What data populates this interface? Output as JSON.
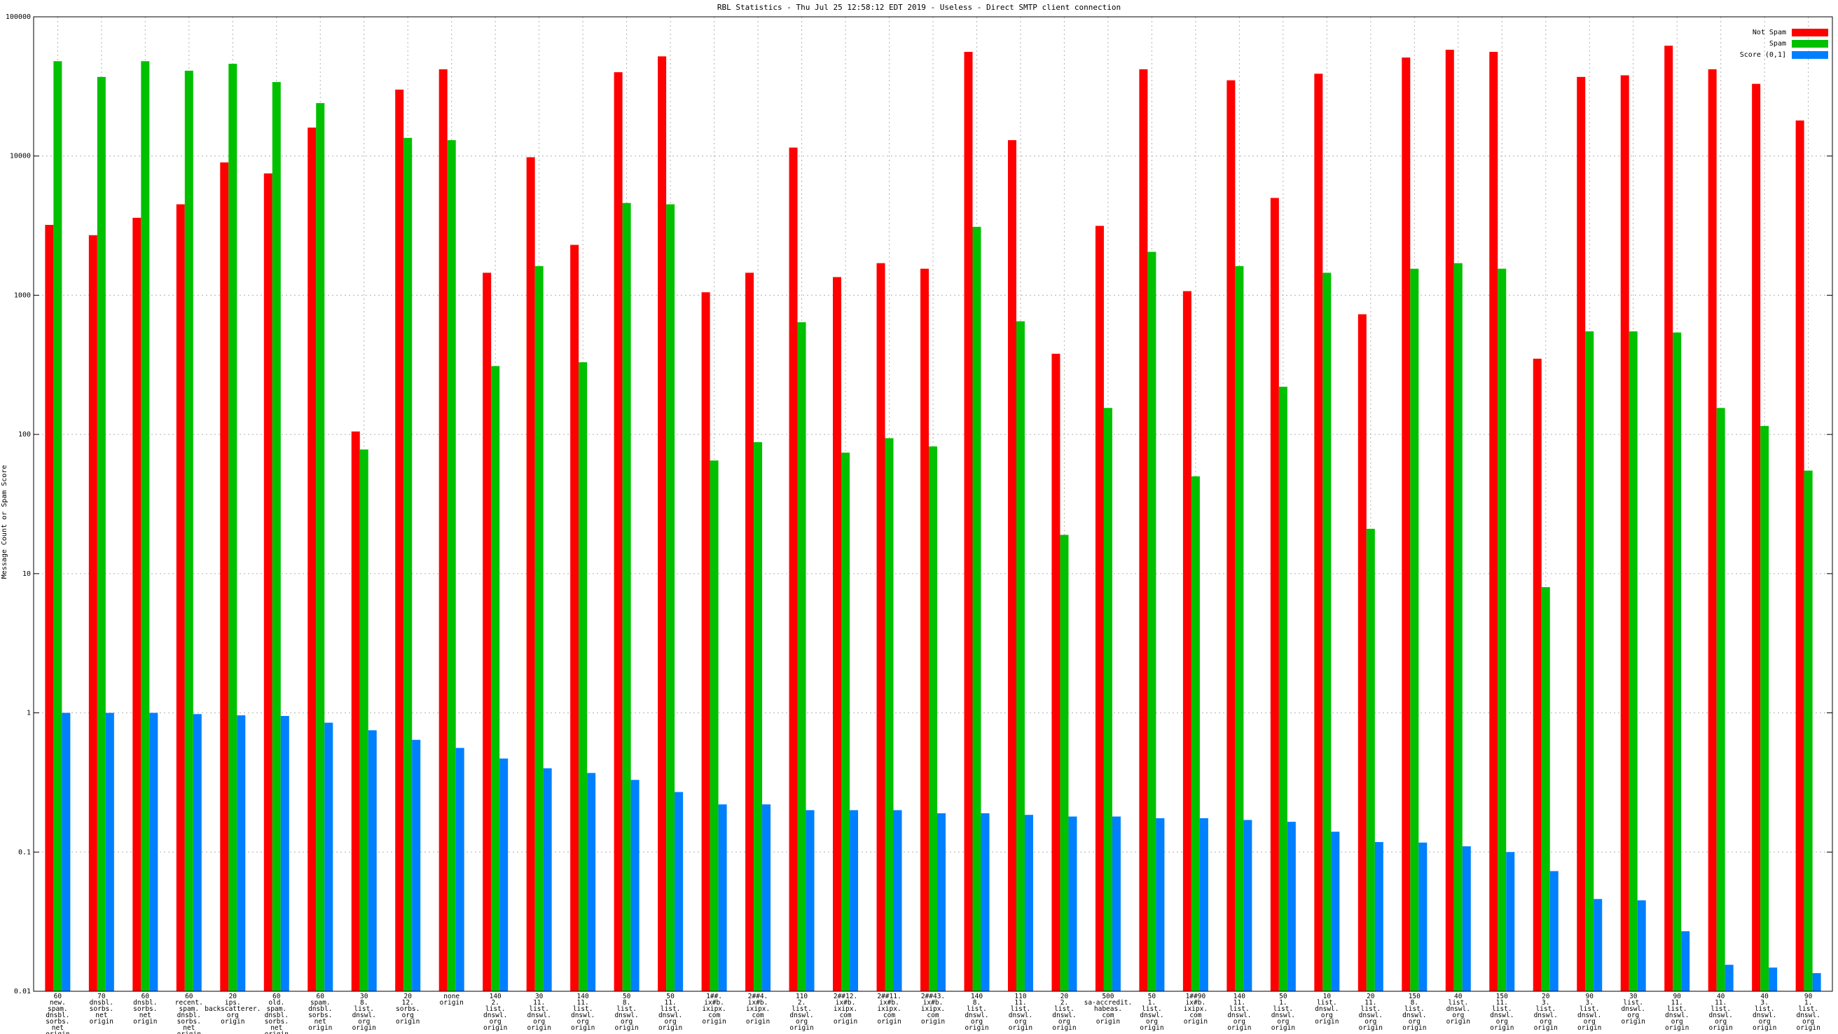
{
  "chart_data": {
    "type": "bar",
    "title": "RBL Statistics - Thu Jul 25 12:58:12 EDT 2019 - Useless - Direct SMTP client connection",
    "ylabel": "Message Count or Spam Score",
    "yscale": "log",
    "ylim": [
      0.01,
      100000
    ],
    "yticks": [
      "0.01",
      "0.1",
      "1",
      "10",
      "100",
      "1000",
      "10000",
      "100000"
    ],
    "grid": true,
    "legend_position": "top-right",
    "colors": [
      "#ff0000",
      "#00c000",
      "#0080ff"
    ],
    "series": [
      {
        "name": "Not Spam",
        "values": [
          3200,
          2700,
          3600,
          4500,
          9000,
          7500,
          16000,
          105,
          30000,
          42000,
          1450,
          9800,
          2300,
          40000,
          52000,
          1050,
          1450,
          11500,
          1350,
          1700,
          1550,
          56000,
          13000,
          380,
          3150,
          42000,
          1070,
          35000,
          5000,
          39000,
          730,
          51000,
          58000,
          56000,
          350,
          37000,
          38000,
          62000,
          42000,
          33000,
          18000
        ]
      },
      {
        "name": "Spam",
        "values": [
          48000,
          37000,
          48000,
          41000,
          46000,
          34000,
          24000,
          78,
          13500,
          13000,
          310,
          1620,
          330,
          4600,
          4500,
          65,
          88,
          640,
          74,
          94,
          82,
          3100,
          650,
          19,
          155,
          2050,
          50,
          1620,
          220,
          1450,
          21,
          1550,
          1700,
          1550,
          8,
          550,
          550,
          540,
          155,
          115,
          55
        ]
      },
      {
        "name": "Score (0,1]",
        "values": [
          1.0,
          1.0,
          1.0,
          0.98,
          0.96,
          0.95,
          0.85,
          0.75,
          0.64,
          0.56,
          0.47,
          0.4,
          0.37,
          0.33,
          0.27,
          0.22,
          0.22,
          0.2,
          0.2,
          0.2,
          0.19,
          0.19,
          0.185,
          0.18,
          0.18,
          0.175,
          0.175,
          0.17,
          0.165,
          0.14,
          0.118,
          0.117,
          0.11,
          0.1,
          0.073,
          0.046,
          0.045,
          0.027,
          0.0155,
          0.0148,
          0.0135
        ]
      }
    ],
    "categories": [
      [
        "60",
        "new.",
        "spam.",
        "dnsbl.",
        "sorbs.",
        "net",
        "origin"
      ],
      [
        "70",
        "dnsbl.",
        "sorbs.",
        "net",
        "origin"
      ],
      [
        "60",
        "dnsbl.",
        "sorbs.",
        "net",
        "origin"
      ],
      [
        "60",
        "recent.",
        "spam.",
        "dnsbl.",
        "sorbs.",
        "net",
        "origin"
      ],
      [
        "20",
        "ips.",
        "backscatterer.",
        "org",
        "origin"
      ],
      [
        "60",
        "old.",
        "spam.",
        "dnsbl.",
        "sorbs.",
        "net",
        "origin"
      ],
      [
        "60",
        "spam.",
        "dnsbl.",
        "sorbs.",
        "net",
        "origin"
      ],
      [
        "30",
        "8.",
        "list.",
        "dnswl.",
        "org",
        "origin"
      ],
      [
        "20",
        "12.",
        "sorbs.",
        "org",
        "origin"
      ],
      [
        "none",
        "origin"
      ],
      [
        "140",
        "2.",
        "list.",
        "dnswl.",
        "org",
        "origin"
      ],
      [
        "30",
        "11.",
        "list.",
        "dnswl.",
        "org",
        "origin"
      ],
      [
        "140",
        "11.",
        "list.",
        "dnswl.",
        "org",
        "origin"
      ],
      [
        "50",
        "8.",
        "list.",
        "dnswl.",
        "org",
        "origin"
      ],
      [
        "50",
        "11.",
        "list.",
        "dnswl.",
        "org",
        "origin"
      ],
      [
        "1##.",
        "ix#b.",
        "ixipx.",
        "com",
        "origin"
      ],
      [
        "2##4.",
        "ix#b.",
        "ixipx.",
        "com",
        "origin"
      ],
      [
        "110",
        "2.",
        "list.",
        "dnswl.",
        "org",
        "origin"
      ],
      [
        "2##12.",
        "ix#b.",
        "ixipx.",
        "com",
        "origin"
      ],
      [
        "2##11.",
        "ix#b.",
        "ixipx.",
        "com",
        "origin"
      ],
      [
        "2##43.",
        "ix#b.",
        "ixipx.",
        "com",
        "origin"
      ],
      [
        "140",
        "8.",
        "list.",
        "dnswl.",
        "org",
        "origin"
      ],
      [
        "110",
        "11.",
        "list.",
        "dnswl.",
        "org",
        "origin"
      ],
      [
        "20",
        "2.",
        "list.",
        "dnswl.",
        "org",
        "origin"
      ],
      [
        "500",
        "sa-accredit.",
        "habeas.",
        "com",
        "origin"
      ],
      [
        "50",
        "1.",
        "list.",
        "dnswl.",
        "org",
        "origin"
      ],
      [
        "1##90",
        "ix#b.",
        "ixipx.",
        "com",
        "origin"
      ],
      [
        "140",
        "11.",
        "list.",
        "dnswl.",
        "org",
        "origin"
      ],
      [
        "50",
        "1.",
        "list.",
        "dnswl.",
        "org",
        "origin"
      ],
      [
        "10",
        "list.",
        "dnswl.",
        "org",
        "origin"
      ],
      [
        "20",
        "11.",
        "list.",
        "dnswl.",
        "org",
        "origin"
      ],
      [
        "150",
        "8.",
        "list.",
        "dnswl.",
        "org",
        "origin"
      ],
      [
        "40",
        "list.",
        "dnswl.",
        "org",
        "origin"
      ],
      [
        "150",
        "11.",
        "list.",
        "dnswl.",
        "org",
        "origin"
      ],
      [
        "20",
        "3.",
        "list.",
        "dnswl.",
        "org",
        "origin"
      ],
      [
        "90",
        "3.",
        "list.",
        "dnswl.",
        "org",
        "origin"
      ],
      [
        "30",
        "list.",
        "dnswl.",
        "org",
        "origin"
      ],
      [
        "90",
        "11.",
        "list.",
        "dnswl.",
        "org",
        "origin"
      ],
      [
        "40",
        "11.",
        "list.",
        "dnswl.",
        "org",
        "origin"
      ],
      [
        "40",
        "3.",
        "list.",
        "dnswl.",
        "org",
        "origin"
      ],
      [
        "90",
        "1.",
        "list.",
        "dnswl.",
        "org",
        "origin"
      ]
    ]
  }
}
